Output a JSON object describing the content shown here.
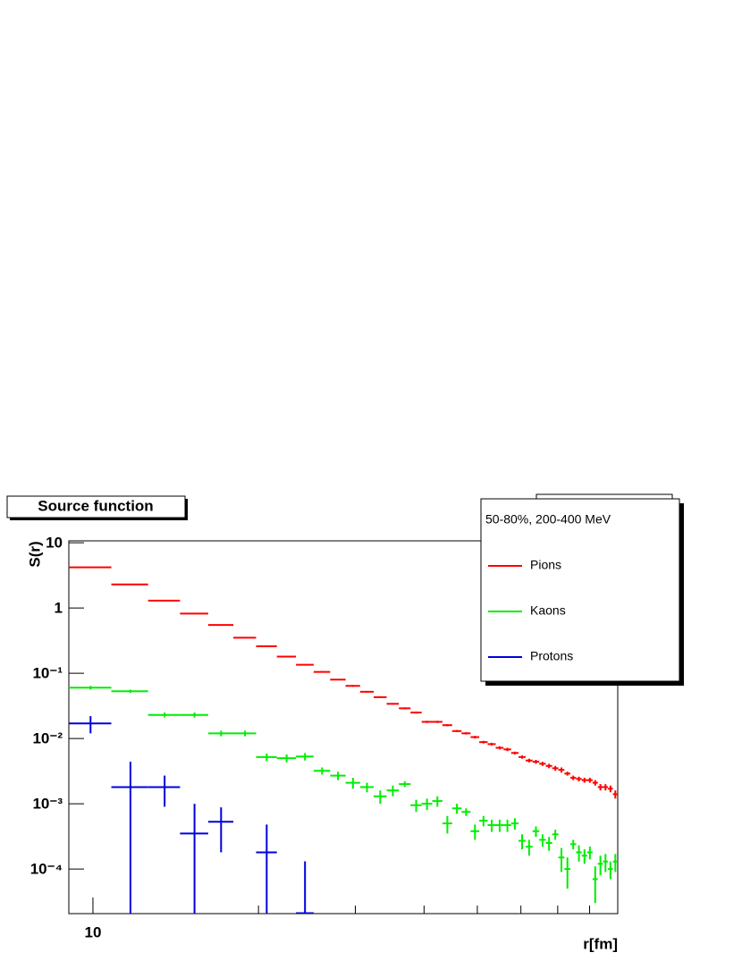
{
  "chart_data": {
    "type": "histogram-errors",
    "title": "Source function",
    "xlabel": "r[fm]",
    "ylabel": "S(r)",
    "legend_title": "50-80%, 200-400 MeV",
    "legend": "top right",
    "xscale": "log",
    "yscale": "log",
    "xlim": [
      9.04,
      90
    ],
    "ylim": [
      2.07e-05,
      10.7
    ],
    "xticks": [
      10
    ],
    "xminorticks": [
      20,
      30,
      40,
      50,
      60,
      70,
      80
    ],
    "yticks": [
      {
        "value": 0.0001,
        "label": "10⁻⁴"
      },
      {
        "value": 0.001,
        "label": "10⁻³"
      },
      {
        "value": 0.01,
        "label": "10⁻²"
      },
      {
        "value": 0.1,
        "label": "10⁻¹"
      },
      1,
      10
    ],
    "bins": [
      9.0,
      10.8,
      12.6,
      14.4,
      16.2,
      18.0,
      19.8,
      21.6,
      23.4,
      25.2,
      27.0,
      28.8,
      30.6,
      32.4,
      34.2,
      36.0,
      37.8,
      39.6,
      41.4,
      43.2,
      45.0,
      46.8,
      48.6,
      50.4,
      52.2,
      54.0,
      55.8,
      57.6,
      59.4,
      61.2,
      63.0,
      64.8,
      66.6,
      68.4,
      70.2,
      72.0,
      73.8,
      75.6,
      77.4,
      79.2,
      81.0,
      82.8,
      84.6,
      86.4,
      88.2,
      90.0
    ],
    "series": [
      {
        "name": "Pions",
        "color": "#ff0000",
        "values": [
          4.2,
          2.3,
          1.3,
          0.82,
          0.55,
          0.35,
          0.26,
          0.18,
          0.135,
          0.105,
          0.08,
          0.064,
          0.052,
          0.043,
          0.034,
          0.029,
          0.025,
          0.018,
          0.018,
          0.016,
          0.013,
          0.012,
          0.0105,
          0.0088,
          0.0082,
          0.0072,
          0.0068,
          0.006,
          0.0052,
          0.0046,
          0.0044,
          0.0041,
          0.0038,
          0.0035,
          0.0033,
          0.0029,
          0.0025,
          0.0024,
          0.0023,
          0.0023,
          0.0021,
          0.0018,
          0.0018,
          0.0017,
          0.0014
        ],
        "errors": [
          0.05,
          0.03,
          0.02,
          0.012,
          0.008,
          0.006,
          0.005,
          0.004,
          0.003,
          0.003,
          0.002,
          0.002,
          0.0015,
          0.0013,
          0.001,
          0.001,
          0.0009,
          0.0007,
          0.0007,
          0.0006,
          0.0005,
          0.0005,
          0.0005,
          0.0004,
          0.0004,
          0.0004,
          0.0004,
          0.0003,
          0.0003,
          0.0003,
          0.0003,
          0.0003,
          0.0003,
          0.0003,
          0.0003,
          0.0002,
          0.0002,
          0.0002,
          0.0002,
          0.0002,
          0.0002,
          0.0002,
          0.0002,
          0.0002,
          0.0002
        ]
      },
      {
        "name": "Kaons",
        "color": "#00ee00",
        "values": [
          0.06,
          0.053,
          0.023,
          0.023,
          0.012,
          0.012,
          0.0052,
          0.005,
          0.0053,
          0.0032,
          0.0027,
          0.0021,
          0.0018,
          0.0013,
          0.0016,
          0.002,
          0.00095,
          0.001,
          0.0011,
          0.0005,
          0.00085,
          0.00075,
          0.00038,
          0.00055,
          0.00047,
          0.00047,
          0.00047,
          0.0005,
          0.00027,
          0.00022,
          0.00038,
          0.00028,
          0.00025,
          0.00034,
          0.00015,
          0.0001,
          0.00024,
          0.00018,
          0.00016,
          0.00018,
          7e-05,
          0.00012,
          0.00013,
          0.0001,
          0.00013
        ],
        "errors": [
          0.004,
          0.003,
          0.002,
          0.002,
          0.0012,
          0.0012,
          0.0007,
          0.0007,
          0.0007,
          0.0004,
          0.0004,
          0.0004,
          0.0003,
          0.0003,
          0.0003,
          0.0002,
          0.0002,
          0.0002,
          0.0002,
          0.00015,
          0.00015,
          0.0001,
          0.0001,
          0.0001,
          0.0001,
          0.0001,
          0.0001,
          0.0001,
          7e-05,
          6e-05,
          7e-05,
          6e-05,
          6e-05,
          6e-05,
          6e-05,
          5e-05,
          4e-05,
          5e-05,
          4e-05,
          4e-05,
          4e-05,
          4e-05,
          4e-05,
          3e-05,
          4e-05
        ]
      },
      {
        "name": "Protons",
        "color": "#0000dd",
        "values": [
          0.017,
          0.0018,
          0.0018,
          0.00035,
          0.00053,
          null,
          0.00018,
          null,
          2.1e-05,
          null,
          null,
          null,
          null,
          null,
          null,
          null,
          null,
          null,
          null,
          null,
          null,
          null,
          null,
          null,
          null,
          null,
          null,
          null,
          null,
          null,
          null,
          null,
          null,
          null,
          null,
          null,
          null,
          null,
          null,
          null,
          null,
          null,
          null,
          null,
          null
        ],
        "errors": [
          0.005,
          0.0026,
          0.0009,
          0.00065,
          0.00035,
          null,
          0.0003,
          null,
          0.00011,
          null,
          null,
          null,
          null,
          null,
          null,
          null,
          null,
          null,
          null,
          null,
          null,
          null,
          null,
          null,
          null,
          null,
          null,
          null,
          null,
          null,
          null,
          null,
          null,
          null,
          null,
          null,
          null,
          null,
          null,
          null,
          null,
          null,
          null,
          null,
          null
        ]
      }
    ]
  }
}
